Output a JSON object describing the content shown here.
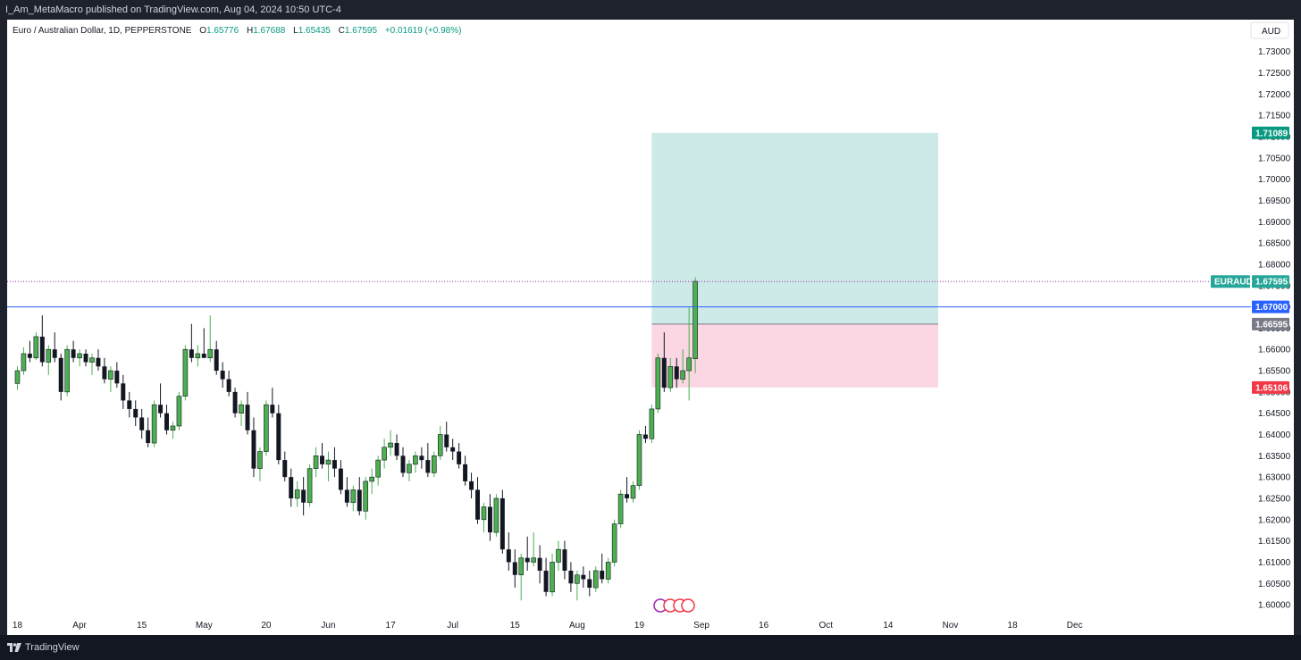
{
  "header": {
    "publish_text": "I_Am_MetaMacro published on TradingView.com, Aug 04, 2024 10:50 UTC-4"
  },
  "footer": {
    "brand": "TradingView"
  },
  "chart_data": {
    "type": "candlestick",
    "symbol": "Euro / Australian Dollar, 1D, PEPPERSTONE",
    "ohlc_legend": {
      "o_label": "O",
      "o": "1.65776",
      "h_label": "H",
      "h": "1.67688",
      "l_label": "L",
      "l": "1.65435",
      "c_label": "C",
      "c": "1.67595",
      "change": "+0.01619 (+0.98%)"
    },
    "currency_label": "AUD",
    "ylim": [
      1.5975,
      1.7375
    ],
    "yticks": [
      "1.73000",
      "1.72500",
      "1.72000",
      "1.71500",
      "1.71000",
      "1.70500",
      "1.70000",
      "1.69500",
      "1.69000",
      "1.68500",
      "1.68000",
      "1.67500",
      "1.67000",
      "1.66500",
      "1.66000",
      "1.65500",
      "1.65000",
      "1.64500",
      "1.64000",
      "1.63500",
      "1.63000",
      "1.62500",
      "1.62000",
      "1.61500",
      "1.61000",
      "1.60500",
      "1.60000"
    ],
    "xticks": [
      {
        "label": "18",
        "i": 0
      },
      {
        "label": "Apr",
        "i": 10
      },
      {
        "label": "15",
        "i": 20
      },
      {
        "label": "May",
        "i": 30
      },
      {
        "label": "20",
        "i": 40
      },
      {
        "label": "Jun",
        "i": 50
      },
      {
        "label": "17",
        "i": 60
      },
      {
        "label": "Jul",
        "i": 70
      },
      {
        "label": "15",
        "i": 80
      },
      {
        "label": "Aug",
        "i": 90
      },
      {
        "label": "19",
        "i": 100
      },
      {
        "label": "Sep",
        "i": 110
      },
      {
        "label": "16",
        "i": 120
      },
      {
        "label": "Oct",
        "i": 130
      },
      {
        "label": "14",
        "i": 140
      },
      {
        "label": "Nov",
        "i": 150
      },
      {
        "label": "18",
        "i": 160
      },
      {
        "label": "Dec",
        "i": 170
      }
    ],
    "candles": [
      [
        1.652,
        1.656,
        1.6505,
        1.655
      ],
      [
        1.655,
        1.6605,
        1.654,
        1.659
      ],
      [
        1.659,
        1.662,
        1.657,
        1.658
      ],
      [
        1.658,
        1.664,
        1.6575,
        1.663
      ],
      [
        1.663,
        1.668,
        1.656,
        1.657
      ],
      [
        1.657,
        1.661,
        1.654,
        1.66
      ],
      [
        1.66,
        1.664,
        1.657,
        1.658
      ],
      [
        1.658,
        1.659,
        1.648,
        1.65
      ],
      [
        1.65,
        1.661,
        1.649,
        1.66
      ],
      [
        1.66,
        1.662,
        1.657,
        1.658
      ],
      [
        1.658,
        1.66,
        1.656,
        1.659
      ],
      [
        1.659,
        1.66,
        1.656,
        1.657
      ],
      [
        1.657,
        1.659,
        1.654,
        1.658
      ],
      [
        1.658,
        1.66,
        1.655,
        1.656
      ],
      [
        1.656,
        1.658,
        1.652,
        1.653
      ],
      [
        1.653,
        1.656,
        1.65,
        1.655
      ],
      [
        1.655,
        1.657,
        1.651,
        1.652
      ],
      [
        1.652,
        1.654,
        1.646,
        1.648
      ],
      [
        1.648,
        1.65,
        1.644,
        1.646
      ],
      [
        1.646,
        1.648,
        1.642,
        1.644
      ],
      [
        1.644,
        1.646,
        1.639,
        1.641
      ],
      [
        1.641,
        1.644,
        1.637,
        1.638
      ],
      [
        1.638,
        1.648,
        1.637,
        1.647
      ],
      [
        1.647,
        1.652,
        1.644,
        1.645
      ],
      [
        1.645,
        1.647,
        1.64,
        1.641
      ],
      [
        1.641,
        1.643,
        1.639,
        1.642
      ],
      [
        1.642,
        1.65,
        1.641,
        1.649
      ],
      [
        1.649,
        1.661,
        1.648,
        1.66
      ],
      [
        1.66,
        1.666,
        1.657,
        1.658
      ],
      [
        1.658,
        1.661,
        1.656,
        1.659
      ],
      [
        1.659,
        1.665,
        1.658,
        1.658
      ],
      [
        1.658,
        1.668,
        1.657,
        1.66
      ],
      [
        1.66,
        1.662,
        1.654,
        1.655
      ],
      [
        1.655,
        1.657,
        1.651,
        1.653
      ],
      [
        1.653,
        1.655,
        1.649,
        1.65
      ],
      [
        1.65,
        1.651,
        1.644,
        1.645
      ],
      [
        1.645,
        1.648,
        1.642,
        1.647
      ],
      [
        1.647,
        1.65,
        1.64,
        1.641
      ],
      [
        1.641,
        1.644,
        1.63,
        1.632
      ],
      [
        1.632,
        1.637,
        1.629,
        1.636
      ],
      [
        1.636,
        1.648,
        1.635,
        1.647
      ],
      [
        1.647,
        1.651,
        1.644,
        1.645
      ],
      [
        1.645,
        1.647,
        1.633,
        1.634
      ],
      [
        1.634,
        1.636,
        1.629,
        1.63
      ],
      [
        1.63,
        1.632,
        1.623,
        1.625
      ],
      [
        1.625,
        1.629,
        1.623,
        1.627
      ],
      [
        1.627,
        1.63,
        1.621,
        1.624
      ],
      [
        1.624,
        1.633,
        1.623,
        1.632
      ],
      [
        1.632,
        1.637,
        1.63,
        1.635
      ],
      [
        1.635,
        1.638,
        1.632,
        1.633
      ],
      [
        1.633,
        1.636,
        1.629,
        1.634
      ],
      [
        1.634,
        1.637,
        1.63,
        1.632
      ],
      [
        1.632,
        1.634,
        1.626,
        1.627
      ],
      [
        1.627,
        1.63,
        1.623,
        1.624
      ],
      [
        1.624,
        1.628,
        1.622,
        1.627
      ],
      [
        1.627,
        1.63,
        1.621,
        1.622
      ],
      [
        1.622,
        1.63,
        1.62,
        1.629
      ],
      [
        1.629,
        1.632,
        1.626,
        1.63
      ],
      [
        1.63,
        1.635,
        1.628,
        1.634
      ],
      [
        1.634,
        1.639,
        1.632,
        1.637
      ],
      [
        1.637,
        1.641,
        1.635,
        1.638
      ],
      [
        1.638,
        1.64,
        1.634,
        1.635
      ],
      [
        1.635,
        1.637,
        1.63,
        1.631
      ],
      [
        1.631,
        1.634,
        1.629,
        1.633
      ],
      [
        1.633,
        1.636,
        1.631,
        1.635
      ],
      [
        1.635,
        1.637,
        1.632,
        1.634
      ],
      [
        1.634,
        1.638,
        1.63,
        1.631
      ],
      [
        1.631,
        1.636,
        1.63,
        1.635
      ],
      [
        1.635,
        1.642,
        1.634,
        1.64
      ],
      [
        1.64,
        1.643,
        1.636,
        1.637
      ],
      [
        1.637,
        1.639,
        1.634,
        1.636
      ],
      [
        1.636,
        1.638,
        1.632,
        1.633
      ],
      [
        1.633,
        1.635,
        1.628,
        1.629
      ],
      [
        1.629,
        1.631,
        1.625,
        1.627
      ],
      [
        1.627,
        1.63,
        1.619,
        1.62
      ],
      [
        1.62,
        1.624,
        1.617,
        1.623
      ],
      [
        1.623,
        1.626,
        1.615,
        1.617
      ],
      [
        1.617,
        1.626,
        1.616,
        1.625
      ],
      [
        1.625,
        1.627,
        1.612,
        1.613
      ],
      [
        1.613,
        1.617,
        1.608,
        1.61
      ],
      [
        1.61,
        1.613,
        1.604,
        1.607
      ],
      [
        1.607,
        1.612,
        1.601,
        1.611
      ],
      [
        1.611,
        1.616,
        1.608,
        1.61
      ],
      [
        1.61,
        1.617,
        1.609,
        1.611
      ],
      [
        1.611,
        1.614,
        1.605,
        1.608
      ],
      [
        1.608,
        1.611,
        1.602,
        1.603
      ],
      [
        1.603,
        1.612,
        1.602,
        1.61
      ],
      [
        1.61,
        1.615,
        1.608,
        1.613
      ],
      [
        1.613,
        1.615,
        1.606,
        1.608
      ],
      [
        1.608,
        1.61,
        1.603,
        1.605
      ],
      [
        1.605,
        1.608,
        1.601,
        1.607
      ],
      [
        1.607,
        1.609,
        1.604,
        1.606
      ],
      [
        1.606,
        1.608,
        1.602,
        1.604
      ],
      [
        1.604,
        1.609,
        1.603,
        1.608
      ],
      [
        1.608,
        1.612,
        1.605,
        1.606
      ],
      [
        1.606,
        1.611,
        1.605,
        1.61
      ],
      [
        1.61,
        1.62,
        1.609,
        1.619
      ],
      [
        1.619,
        1.627,
        1.618,
        1.626
      ],
      [
        1.626,
        1.63,
        1.624,
        1.625
      ],
      [
        1.625,
        1.629,
        1.624,
        1.628
      ],
      [
        1.628,
        1.641,
        1.627,
        1.64
      ],
      [
        1.64,
        1.642,
        1.638,
        1.639
      ],
      [
        1.639,
        1.647,
        1.638,
        1.646
      ],
      [
        1.646,
        1.659,
        1.645,
        1.658
      ],
      [
        1.658,
        1.664,
        1.65,
        1.651
      ],
      [
        1.651,
        1.658,
        1.65,
        1.656
      ],
      [
        1.656,
        1.658,
        1.651,
        1.653
      ],
      [
        1.653,
        1.66,
        1.652,
        1.655
      ],
      [
        1.655,
        1.67,
        1.648,
        1.658
      ],
      [
        1.6578,
        1.6769,
        1.6544,
        1.676
      ]
    ],
    "price_lines": [
      {
        "name": "level-line",
        "value": 1.67,
        "color": "#2962ff",
        "label": "1.67000"
      },
      {
        "name": "last-price-line",
        "value": 1.67595,
        "color": "#9c27b0",
        "label": "1.67595",
        "tag": "EURAUD",
        "tag_color": "#26a69a"
      }
    ],
    "position_tool": {
      "type": "long",
      "entry": 1.66595,
      "entry_label": "1.66595",
      "target": 1.71089,
      "target_label": "1.71089",
      "stop": 1.65106,
      "stop_label": "1.65106",
      "start_index": 102.5,
      "end_index": 120
    },
    "colors": {
      "up": "#4caf50",
      "down": "#131722",
      "profit_zone": "#b2dfdb",
      "loss_zone": "#f8bbd0",
      "target_badge": "#089981",
      "stop_badge": "#f23645",
      "entry_badge": "#787b86",
      "level_badge": "#2962ff"
    }
  }
}
